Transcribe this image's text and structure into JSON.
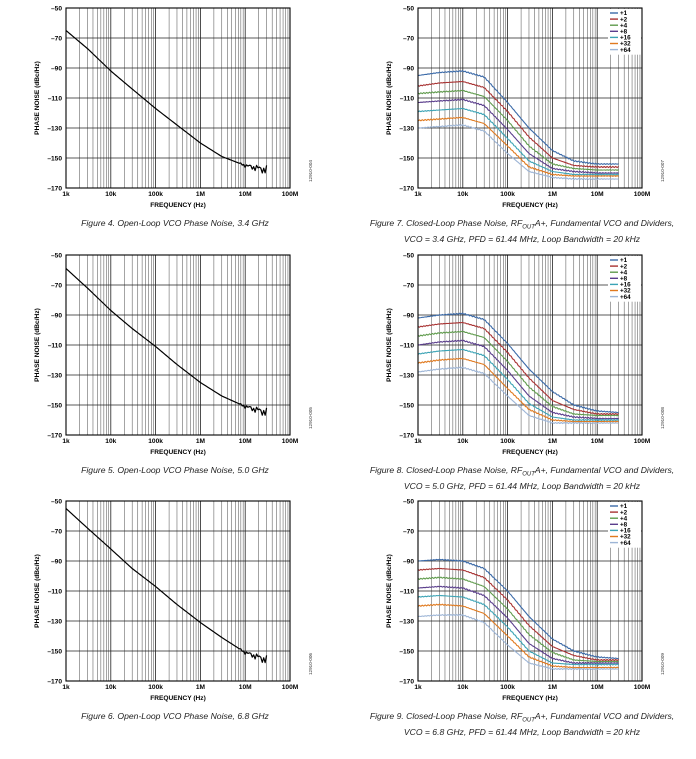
{
  "chart_data": [
    {
      "type": "line",
      "figure_code": "12910-004",
      "caption_lines": [
        "Figure 4. Open-Loop VCO Phase Noise, 3.4 GHz"
      ],
      "xlabel": "FREQUENCY (Hz)",
      "ylabel": "PHASE NOISE (dBc/Hz)",
      "x_scale": "log",
      "xlim": [
        1000,
        100000000
      ],
      "ylim": [
        -170,
        -50
      ],
      "x_ticks": [
        1000,
        10000,
        100000,
        1000000,
        10000000,
        100000000
      ],
      "x_tick_labels": [
        "1k",
        "10k",
        "100k",
        "1M",
        "10M",
        "100M"
      ],
      "y_ticks": [
        -50,
        -70,
        -90,
        -110,
        -130,
        -150,
        -170
      ],
      "y_tick_labels": [
        "–50",
        "–70",
        "–90",
        "–110",
        "–130",
        "–150",
        "–170"
      ],
      "series": [
        {
          "color": "#000000",
          "noise": true,
          "x": [
            1000,
            3000,
            10000,
            30000,
            100000,
            300000,
            1000000,
            3000000,
            10000000,
            30000000
          ],
          "y": [
            -65,
            -77,
            -92,
            -104,
            -117,
            -128,
            -140,
            -149,
            -155,
            -158
          ]
        }
      ]
    },
    {
      "type": "line",
      "figure_code": "12910-007",
      "caption_lines": [
        "Figure 7. Closed-Loop Phase Noise, RF",
        "OUT",
        "A+, Fundamental VCO and Dividers,",
        "VCO = 3.4 GHz, PFD = 61.44 MHz, Loop Bandwidth = 20 kHz"
      ],
      "xlabel": "FREQUENCY (Hz)",
      "ylabel": "PHASE NOISE (dBc/Hz)",
      "x_scale": "log",
      "xlim": [
        1000,
        100000000
      ],
      "ylim": [
        -170,
        -50
      ],
      "x_ticks": [
        1000,
        10000,
        100000,
        1000000,
        10000000,
        100000000
      ],
      "x_tick_labels": [
        "1k",
        "10k",
        "100k",
        "1M",
        "10M",
        "100M"
      ],
      "y_ticks": [
        -50,
        -70,
        -90,
        -110,
        -130,
        -150,
        -170
      ],
      "y_tick_labels": [
        "–50",
        "–70",
        "–90",
        "–110",
        "–130",
        "–150",
        "–170"
      ],
      "legend": "top-right",
      "series": [
        {
          "name": "+1",
          "color": "#3b6aa8",
          "x": [
            1000,
            3000,
            10000,
            30000,
            100000,
            300000,
            1000000,
            3000000,
            10000000,
            30000000
          ],
          "y": [
            -95,
            -93,
            -92,
            -96,
            -113,
            -130,
            -145,
            -152,
            -154,
            -154
          ]
        },
        {
          "name": "+2",
          "color": "#a83232",
          "x": [
            1000,
            3000,
            10000,
            30000,
            100000,
            300000,
            1000000,
            3000000,
            10000000,
            30000000
          ],
          "y": [
            -102,
            -100,
            -99,
            -103,
            -119,
            -136,
            -150,
            -155,
            -156,
            -156
          ]
        },
        {
          "name": "+4",
          "color": "#5f9b4c",
          "x": [
            1000,
            3000,
            10000,
            30000,
            100000,
            300000,
            1000000,
            3000000,
            10000000,
            30000000
          ],
          "y": [
            -107,
            -106,
            -105,
            -109,
            -125,
            -142,
            -154,
            -157,
            -158,
            -158
          ]
        },
        {
          "name": "+8",
          "color": "#5a3d8c",
          "x": [
            1000,
            3000,
            10000,
            30000,
            100000,
            300000,
            1000000,
            3000000,
            10000000,
            30000000
          ],
          "y": [
            -113,
            -112,
            -111,
            -115,
            -131,
            -147,
            -157,
            -159,
            -160,
            -160
          ]
        },
        {
          "name": "+16",
          "color": "#3ba3b5",
          "x": [
            1000,
            3000,
            10000,
            30000,
            100000,
            300000,
            1000000,
            3000000,
            10000000,
            30000000
          ],
          "y": [
            -119,
            -118,
            -117,
            -121,
            -137,
            -152,
            -159,
            -161,
            -161,
            -161
          ]
        },
        {
          "name": "+32",
          "color": "#e07a1f",
          "x": [
            1000,
            3000,
            10000,
            30000,
            100000,
            300000,
            1000000,
            3000000,
            10000000,
            30000000
          ],
          "y": [
            -125,
            -124,
            -123,
            -127,
            -142,
            -156,
            -161,
            -162,
            -162,
            -162
          ]
        },
        {
          "name": "+64",
          "color": "#9db5d6",
          "x": [
            1000,
            3000,
            10000,
            30000,
            100000,
            300000,
            1000000,
            3000000,
            10000000,
            30000000
          ],
          "y": [
            -130,
            -129,
            -128,
            -132,
            -147,
            -159,
            -163,
            -164,
            -164,
            -164
          ]
        }
      ]
    },
    {
      "type": "line",
      "figure_code": "12910-005",
      "caption_lines": [
        "Figure 5. Open-Loop VCO Phase Noise, 5.0 GHz"
      ],
      "xlabel": "FREQUENCY (Hz)",
      "ylabel": "PHASE NOISE (dBc/Hz)",
      "x_scale": "log",
      "xlim": [
        1000,
        100000000
      ],
      "ylim": [
        -170,
        -50
      ],
      "x_ticks": [
        1000,
        10000,
        100000,
        1000000,
        10000000,
        100000000
      ],
      "x_tick_labels": [
        "1k",
        "10k",
        "100k",
        "1M",
        "10M",
        "100M"
      ],
      "y_ticks": [
        -50,
        -70,
        -90,
        -110,
        -130,
        -150,
        -170
      ],
      "y_tick_labels": [
        "–50",
        "–70",
        "–90",
        "–110",
        "–130",
        "–150",
        "–170"
      ],
      "series": [
        {
          "color": "#000000",
          "noise": true,
          "x": [
            1000,
            3000,
            10000,
            30000,
            100000,
            300000,
            1000000,
            3000000,
            10000000,
            30000000
          ],
          "y": [
            -59,
            -72,
            -87,
            -99,
            -111,
            -123,
            -135,
            -144,
            -151,
            -155
          ]
        }
      ]
    },
    {
      "type": "line",
      "figure_code": "12910-008",
      "caption_lines": [
        "Figure 8. Closed-Loop Phase Noise, RF",
        "OUT",
        "A+, Fundamental VCO and Dividers,",
        "VCO = 5.0 GHz, PFD = 61.44 MHz, Loop Bandwidth = 20 kHz"
      ],
      "xlabel": "FREQUENCY (Hz)",
      "ylabel": "PHASE NOISE (dBc/Hz)",
      "x_scale": "log",
      "xlim": [
        1000,
        100000000
      ],
      "ylim": [
        -170,
        -50
      ],
      "x_ticks": [
        1000,
        10000,
        100000,
        1000000,
        10000000,
        100000000
      ],
      "x_tick_labels": [
        "1k",
        "10k",
        "100k",
        "1M",
        "10M",
        "100M"
      ],
      "y_ticks": [
        -50,
        -70,
        -90,
        -110,
        -130,
        -150,
        -170
      ],
      "y_tick_labels": [
        "–50",
        "–70",
        "–90",
        "–110",
        "–130",
        "–150",
        "–170"
      ],
      "legend": "top-right",
      "series": [
        {
          "name": "+1",
          "color": "#3b6aa8",
          "x": [
            1000,
            3000,
            10000,
            30000,
            100000,
            300000,
            1000000,
            3000000,
            10000000,
            30000000
          ],
          "y": [
            -92,
            -90,
            -89,
            -93,
            -109,
            -126,
            -141,
            -150,
            -154,
            -155
          ]
        },
        {
          "name": "+2",
          "color": "#a83232",
          "x": [
            1000,
            3000,
            10000,
            30000,
            100000,
            300000,
            1000000,
            3000000,
            10000000,
            30000000
          ],
          "y": [
            -98,
            -96,
            -95,
            -99,
            -115,
            -132,
            -147,
            -153,
            -156,
            -156
          ]
        },
        {
          "name": "+4",
          "color": "#5f9b4c",
          "x": [
            1000,
            3000,
            10000,
            30000,
            100000,
            300000,
            1000000,
            3000000,
            10000000,
            30000000
          ],
          "y": [
            -104,
            -102,
            -101,
            -105,
            -121,
            -138,
            -151,
            -156,
            -157,
            -157
          ]
        },
        {
          "name": "+8",
          "color": "#5a3d8c",
          "x": [
            1000,
            3000,
            10000,
            30000,
            100000,
            300000,
            1000000,
            3000000,
            10000000,
            30000000
          ],
          "y": [
            -110,
            -108,
            -107,
            -111,
            -127,
            -144,
            -155,
            -158,
            -159,
            -159
          ]
        },
        {
          "name": "+16",
          "color": "#3ba3b5",
          "x": [
            1000,
            3000,
            10000,
            30000,
            100000,
            300000,
            1000000,
            3000000,
            10000000,
            30000000
          ],
          "y": [
            -116,
            -114,
            -113,
            -117,
            -133,
            -149,
            -158,
            -160,
            -160,
            -160
          ]
        },
        {
          "name": "+32",
          "color": "#e07a1f",
          "x": [
            1000,
            3000,
            10000,
            30000,
            100000,
            300000,
            1000000,
            3000000,
            10000000,
            30000000
          ],
          "y": [
            -122,
            -120,
            -119,
            -123,
            -139,
            -153,
            -160,
            -161,
            -161,
            -161
          ]
        },
        {
          "name": "+64",
          "color": "#9db5d6",
          "x": [
            1000,
            3000,
            10000,
            30000,
            100000,
            300000,
            1000000,
            3000000,
            10000000,
            30000000
          ],
          "y": [
            -128,
            -126,
            -125,
            -129,
            -144,
            -157,
            -162,
            -162,
            -162,
            -162
          ]
        }
      ]
    },
    {
      "type": "line",
      "figure_code": "12910-006",
      "caption_lines": [
        "Figure 6. Open-Loop VCO Phase Noise, 6.8 GHz"
      ],
      "xlabel": "FREQUENCY (Hz)",
      "ylabel": "PHASE NOISE (dBc/Hz)",
      "x_scale": "log",
      "xlim": [
        1000,
        100000000
      ],
      "ylim": [
        -170,
        -50
      ],
      "x_ticks": [
        1000,
        10000,
        100000,
        1000000,
        10000000,
        100000000
      ],
      "x_tick_labels": [
        "1k",
        "10k",
        "100k",
        "1M",
        "10M",
        "100M"
      ],
      "y_ticks": [
        -50,
        -70,
        -90,
        -110,
        -130,
        -150,
        -170
      ],
      "y_tick_labels": [
        "–50",
        "–70",
        "–90",
        "–110",
        "–130",
        "–150",
        "–170"
      ],
      "series": [
        {
          "color": "#000000",
          "noise": true,
          "x": [
            1000,
            3000,
            10000,
            30000,
            100000,
            300000,
            1000000,
            3000000,
            10000000,
            30000000
          ],
          "y": [
            -55,
            -68,
            -82,
            -95,
            -107,
            -119,
            -131,
            -141,
            -151,
            -156
          ]
        }
      ]
    },
    {
      "type": "line",
      "figure_code": "12910-009",
      "caption_lines": [
        "Figure 9. Closed-Loop Phase Noise, RF",
        "OUT",
        "A+, Fundamental VCO and Dividers,",
        "VCO = 6.8 GHz, PFD = 61.44 MHz, Loop Bandwidth = 20 kHz"
      ],
      "xlabel": "FREQUENCY (Hz)",
      "ylabel": "PHASE NOISE (dBc/Hz)",
      "x_scale": "log",
      "xlim": [
        1000,
        100000000
      ],
      "ylim": [
        -170,
        -50
      ],
      "x_ticks": [
        1000,
        10000,
        100000,
        1000000,
        10000000,
        100000000
      ],
      "x_tick_labels": [
        "1k",
        "10k",
        "100k",
        "1M",
        "10M",
        "100M"
      ],
      "y_ticks": [
        -50,
        -70,
        -90,
        -110,
        -130,
        -150,
        -170
      ],
      "y_tick_labels": [
        "–50",
        "–70",
        "–90",
        "–110",
        "–130",
        "–150",
        "–170"
      ],
      "legend": "top-right",
      "series": [
        {
          "name": "+1",
          "color": "#3b6aa8",
          "x": [
            1000,
            3000,
            10000,
            30000,
            100000,
            300000,
            1000000,
            3000000,
            10000000,
            30000000
          ],
          "y": [
            -90,
            -89,
            -90,
            -95,
            -110,
            -127,
            -142,
            -150,
            -154,
            -155
          ]
        },
        {
          "name": "+2",
          "color": "#a83232",
          "x": [
            1000,
            3000,
            10000,
            30000,
            100000,
            300000,
            1000000,
            3000000,
            10000000,
            30000000
          ],
          "y": [
            -96,
            -95,
            -96,
            -101,
            -116,
            -133,
            -147,
            -153,
            -156,
            -156
          ]
        },
        {
          "name": "+4",
          "color": "#5f9b4c",
          "x": [
            1000,
            3000,
            10000,
            30000,
            100000,
            300000,
            1000000,
            3000000,
            10000000,
            30000000
          ],
          "y": [
            -102,
            -101,
            -102,
            -107,
            -122,
            -139,
            -151,
            -156,
            -157,
            -157
          ]
        },
        {
          "name": "+8",
          "color": "#5a3d8c",
          "x": [
            1000,
            3000,
            10000,
            30000,
            100000,
            300000,
            1000000,
            3000000,
            10000000,
            30000000
          ],
          "y": [
            -108,
            -107,
            -108,
            -113,
            -128,
            -145,
            -155,
            -158,
            -158,
            -158
          ]
        },
        {
          "name": "+16",
          "color": "#3ba3b5",
          "x": [
            1000,
            3000,
            10000,
            30000,
            100000,
            300000,
            1000000,
            3000000,
            10000000,
            30000000
          ],
          "y": [
            -114,
            -113,
            -114,
            -119,
            -134,
            -150,
            -158,
            -159,
            -159,
            -159
          ]
        },
        {
          "name": "+32",
          "color": "#e07a1f",
          "x": [
            1000,
            3000,
            10000,
            30000,
            100000,
            300000,
            1000000,
            3000000,
            10000000,
            30000000
          ],
          "y": [
            -120,
            -119,
            -120,
            -125,
            -140,
            -154,
            -160,
            -161,
            -161,
            -161
          ]
        },
        {
          "name": "+64",
          "color": "#9db5d6",
          "x": [
            1000,
            3000,
            10000,
            30000,
            100000,
            300000,
            1000000,
            3000000,
            10000000,
            30000000
          ],
          "y": [
            -127,
            -126,
            -126,
            -131,
            -146,
            -158,
            -162,
            -162,
            -162,
            -162
          ]
        }
      ]
    }
  ]
}
